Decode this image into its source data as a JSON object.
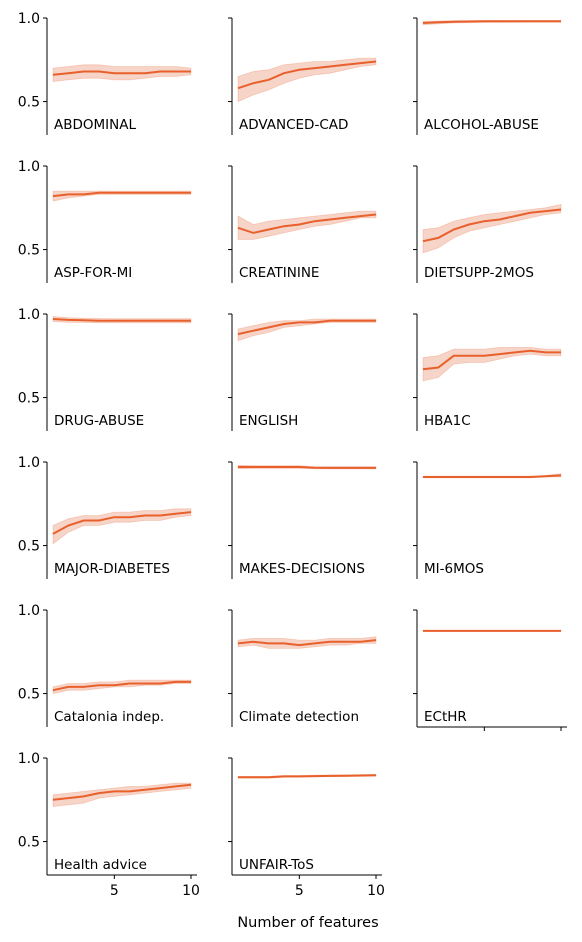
{
  "chart_data": {
    "type": "line",
    "xlabel": "Number of features",
    "x": [
      1,
      2,
      3,
      4,
      5,
      6,
      7,
      8,
      9,
      10
    ],
    "xticks": [
      5,
      10
    ],
    "ylim": [
      0.3,
      1.0
    ],
    "yticks": [
      "1.0",
      "0.5"
    ],
    "line_color": "#e8602c",
    "band_color": "#f4c2b0",
    "panels": [
      {
        "label": "ABDOMINAL",
        "mean": [
          0.66,
          0.67,
          0.68,
          0.68,
          0.67,
          0.67,
          0.67,
          0.68,
          0.68,
          0.68
        ],
        "lower": [
          0.62,
          0.63,
          0.64,
          0.64,
          0.63,
          0.63,
          0.64,
          0.65,
          0.65,
          0.66
        ],
        "upper": [
          0.7,
          0.71,
          0.72,
          0.72,
          0.71,
          0.71,
          0.71,
          0.71,
          0.71,
          0.7
        ]
      },
      {
        "label": "ADVANCED-CAD",
        "mean": [
          0.58,
          0.61,
          0.63,
          0.67,
          0.69,
          0.7,
          0.71,
          0.72,
          0.73,
          0.74
        ],
        "lower": [
          0.5,
          0.54,
          0.57,
          0.61,
          0.64,
          0.66,
          0.67,
          0.69,
          0.71,
          0.72
        ],
        "upper": [
          0.65,
          0.68,
          0.69,
          0.72,
          0.73,
          0.74,
          0.74,
          0.75,
          0.76,
          0.76
        ]
      },
      {
        "label": "ALCOHOL-ABUSE",
        "mean": [
          0.97,
          0.975,
          0.978,
          0.979,
          0.98,
          0.98,
          0.98,
          0.98,
          0.98,
          0.98
        ],
        "lower": [
          0.96,
          0.965,
          0.97,
          0.972,
          0.973,
          0.973,
          0.974,
          0.975,
          0.975,
          0.975
        ],
        "upper": [
          0.98,
          0.982,
          0.984,
          0.985,
          0.985,
          0.985,
          0.985,
          0.985,
          0.985,
          0.985
        ]
      },
      {
        "label": "ASP-FOR-MI",
        "mean": [
          0.82,
          0.83,
          0.83,
          0.84,
          0.84,
          0.84,
          0.84,
          0.84,
          0.84,
          0.84
        ],
        "lower": [
          0.79,
          0.81,
          0.82,
          0.83,
          0.83,
          0.83,
          0.83,
          0.83,
          0.83,
          0.83
        ],
        "upper": [
          0.85,
          0.85,
          0.85,
          0.85,
          0.85,
          0.85,
          0.85,
          0.85,
          0.85,
          0.85
        ]
      },
      {
        "label": "CREATININE",
        "mean": [
          0.63,
          0.6,
          0.62,
          0.64,
          0.65,
          0.67,
          0.68,
          0.69,
          0.7,
          0.71
        ],
        "lower": [
          0.56,
          0.56,
          0.58,
          0.6,
          0.62,
          0.64,
          0.65,
          0.67,
          0.69,
          0.69
        ],
        "upper": [
          0.7,
          0.65,
          0.67,
          0.68,
          0.69,
          0.7,
          0.71,
          0.72,
          0.73,
          0.73
        ]
      },
      {
        "label": "DIETSUPP-2MOS",
        "mean": [
          0.55,
          0.57,
          0.62,
          0.65,
          0.67,
          0.68,
          0.7,
          0.72,
          0.73,
          0.74
        ],
        "lower": [
          0.48,
          0.51,
          0.57,
          0.61,
          0.63,
          0.65,
          0.67,
          0.69,
          0.71,
          0.72
        ],
        "upper": [
          0.62,
          0.63,
          0.67,
          0.69,
          0.71,
          0.72,
          0.73,
          0.74,
          0.75,
          0.77
        ]
      },
      {
        "label": "DRUG-ABUSE",
        "mean": [
          0.97,
          0.965,
          0.963,
          0.96,
          0.96,
          0.96,
          0.96,
          0.96,
          0.96,
          0.96
        ],
        "lower": [
          0.955,
          0.95,
          0.95,
          0.948,
          0.948,
          0.947,
          0.947,
          0.947,
          0.947,
          0.947
        ],
        "upper": [
          0.985,
          0.978,
          0.975,
          0.973,
          0.972,
          0.972,
          0.972,
          0.972,
          0.972,
          0.972
        ]
      },
      {
        "label": "ENGLISH",
        "mean": [
          0.88,
          0.9,
          0.92,
          0.94,
          0.95,
          0.95,
          0.96,
          0.96,
          0.96,
          0.96
        ],
        "lower": [
          0.84,
          0.87,
          0.89,
          0.92,
          0.93,
          0.94,
          0.95,
          0.95,
          0.95,
          0.95
        ],
        "upper": [
          0.91,
          0.93,
          0.95,
          0.96,
          0.96,
          0.97,
          0.97,
          0.97,
          0.97,
          0.97
        ]
      },
      {
        "label": "HBA1C",
        "mean": [
          0.67,
          0.68,
          0.75,
          0.75,
          0.75,
          0.76,
          0.77,
          0.78,
          0.77,
          0.77
        ],
        "lower": [
          0.6,
          0.62,
          0.7,
          0.71,
          0.71,
          0.73,
          0.75,
          0.76,
          0.75,
          0.75
        ],
        "upper": [
          0.74,
          0.75,
          0.79,
          0.79,
          0.79,
          0.8,
          0.8,
          0.8,
          0.79,
          0.79
        ]
      },
      {
        "label": "MAJOR-DIABETES",
        "mean": [
          0.57,
          0.62,
          0.65,
          0.65,
          0.67,
          0.67,
          0.68,
          0.68,
          0.69,
          0.7
        ],
        "lower": [
          0.51,
          0.58,
          0.62,
          0.62,
          0.64,
          0.64,
          0.65,
          0.65,
          0.67,
          0.68
        ],
        "upper": [
          0.62,
          0.66,
          0.68,
          0.68,
          0.7,
          0.7,
          0.71,
          0.71,
          0.72,
          0.72
        ]
      },
      {
        "label": "MAKES-DECISIONS",
        "mean": [
          0.97,
          0.97,
          0.97,
          0.97,
          0.97,
          0.966,
          0.965,
          0.965,
          0.965,
          0.965
        ],
        "lower": [
          0.96,
          0.962,
          0.962,
          0.962,
          0.962,
          0.96,
          0.958,
          0.958,
          0.958,
          0.958
        ],
        "upper": [
          0.98,
          0.978,
          0.978,
          0.978,
          0.978,
          0.972,
          0.972,
          0.972,
          0.972,
          0.972
        ]
      },
      {
        "label": "MI-6MOS",
        "mean": [
          0.91,
          0.91,
          0.91,
          0.91,
          0.91,
          0.91,
          0.91,
          0.91,
          0.915,
          0.92
        ],
        "lower": [
          0.905,
          0.905,
          0.905,
          0.905,
          0.905,
          0.905,
          0.905,
          0.905,
          0.91,
          0.91
        ],
        "upper": [
          0.915,
          0.915,
          0.915,
          0.915,
          0.915,
          0.915,
          0.915,
          0.915,
          0.92,
          0.93
        ]
      },
      {
        "label": "Catalonia indep.",
        "mean": [
          0.52,
          0.54,
          0.54,
          0.55,
          0.55,
          0.56,
          0.56,
          0.56,
          0.57,
          0.57
        ],
        "lower": [
          0.5,
          0.52,
          0.52,
          0.53,
          0.54,
          0.54,
          0.55,
          0.55,
          0.56,
          0.56
        ],
        "upper": [
          0.54,
          0.56,
          0.56,
          0.57,
          0.57,
          0.58,
          0.58,
          0.58,
          0.58,
          0.58
        ]
      },
      {
        "label": "Climate detection",
        "mean": [
          0.8,
          0.81,
          0.8,
          0.8,
          0.79,
          0.8,
          0.81,
          0.81,
          0.81,
          0.82
        ],
        "lower": [
          0.78,
          0.79,
          0.77,
          0.77,
          0.77,
          0.78,
          0.79,
          0.79,
          0.8,
          0.8
        ],
        "upper": [
          0.82,
          0.83,
          0.83,
          0.83,
          0.82,
          0.82,
          0.83,
          0.83,
          0.83,
          0.84
        ]
      },
      {
        "label": "ECtHR",
        "mean": [
          0.875,
          0.875,
          0.875,
          0.875,
          0.875,
          0.875,
          0.875,
          0.875,
          0.875,
          0.875
        ],
        "lower": [
          0.872,
          0.872,
          0.872,
          0.872,
          0.872,
          0.872,
          0.872,
          0.872,
          0.872,
          0.872
        ],
        "upper": [
          0.878,
          0.878,
          0.878,
          0.878,
          0.878,
          0.878,
          0.878,
          0.878,
          0.878,
          0.878
        ]
      },
      {
        "label": "Health advice",
        "mean": [
          0.75,
          0.76,
          0.77,
          0.79,
          0.8,
          0.8,
          0.81,
          0.82,
          0.83,
          0.84
        ],
        "lower": [
          0.71,
          0.72,
          0.73,
          0.76,
          0.77,
          0.78,
          0.79,
          0.8,
          0.81,
          0.82
        ],
        "upper": [
          0.78,
          0.79,
          0.8,
          0.81,
          0.82,
          0.83,
          0.83,
          0.84,
          0.85,
          0.85
        ]
      },
      {
        "label": "UNFAIR-ToS",
        "mean": [
          0.885,
          0.885,
          0.885,
          0.89,
          0.89,
          0.892,
          0.893,
          0.894,
          0.895,
          0.897
        ],
        "lower": [
          0.88,
          0.88,
          0.88,
          0.885,
          0.885,
          0.887,
          0.888,
          0.889,
          0.89,
          0.892
        ],
        "upper": [
          0.89,
          0.89,
          0.89,
          0.895,
          0.895,
          0.897,
          0.898,
          0.899,
          0.9,
          0.902
        ]
      }
    ]
  }
}
